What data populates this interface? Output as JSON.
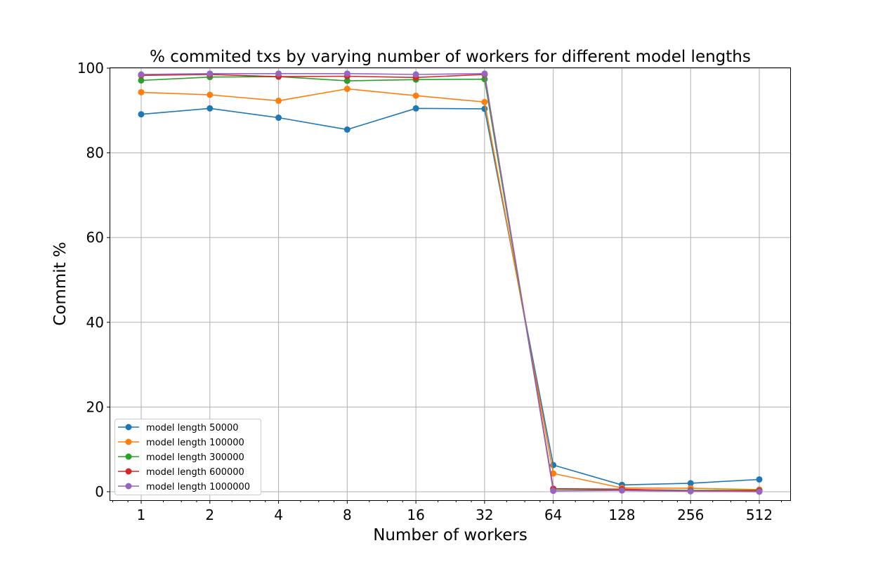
{
  "chart_data": {
    "type": "line",
    "title": "% commited txs by varying number of workers for different model lengths",
    "xlabel": "Number of workers",
    "ylabel": "Commit %",
    "x_scale": "log2",
    "x": [
      1,
      2,
      4,
      8,
      16,
      32,
      64,
      128,
      256,
      512
    ],
    "x_tick_labels": [
      "1",
      "2",
      "4",
      "8",
      "16",
      "32",
      "64",
      "128",
      "256",
      "512"
    ],
    "y_ticks": [
      0,
      20,
      40,
      60,
      80,
      100
    ],
    "y_tick_labels": [
      "0",
      "20",
      "40",
      "60",
      "80",
      "100"
    ],
    "ylim": [
      -2,
      100
    ],
    "grid": true,
    "legend_position": "lower-left",
    "series": [
      {
        "name": "model length 50000",
        "color": "#1f77b4",
        "values": [
          89.1,
          90.5,
          88.3,
          85.5,
          90.5,
          90.4,
          6.3,
          1.6,
          2.0,
          2.9
        ]
      },
      {
        "name": "model length 100000",
        "color": "#ff7f0e",
        "values": [
          94.3,
          93.7,
          92.3,
          95.1,
          93.5,
          92.0,
          4.3,
          0.9,
          0.8,
          0.5
        ]
      },
      {
        "name": "model length 300000",
        "color": "#2ca02c",
        "values": [
          97.1,
          97.9,
          98.0,
          97.0,
          97.3,
          97.4,
          0.6,
          0.5,
          0.3,
          0.3
        ]
      },
      {
        "name": "model length 600000",
        "color": "#d62728",
        "values": [
          98.3,
          98.5,
          98.0,
          98.1,
          97.8,
          98.5,
          0.7,
          0.6,
          0.2,
          0.2
        ]
      },
      {
        "name": "model length 1000000",
        "color": "#9467bd",
        "values": [
          98.5,
          98.7,
          98.7,
          98.7,
          98.5,
          98.7,
          0.2,
          0.3,
          0.1,
          0.0
        ]
      }
    ]
  }
}
